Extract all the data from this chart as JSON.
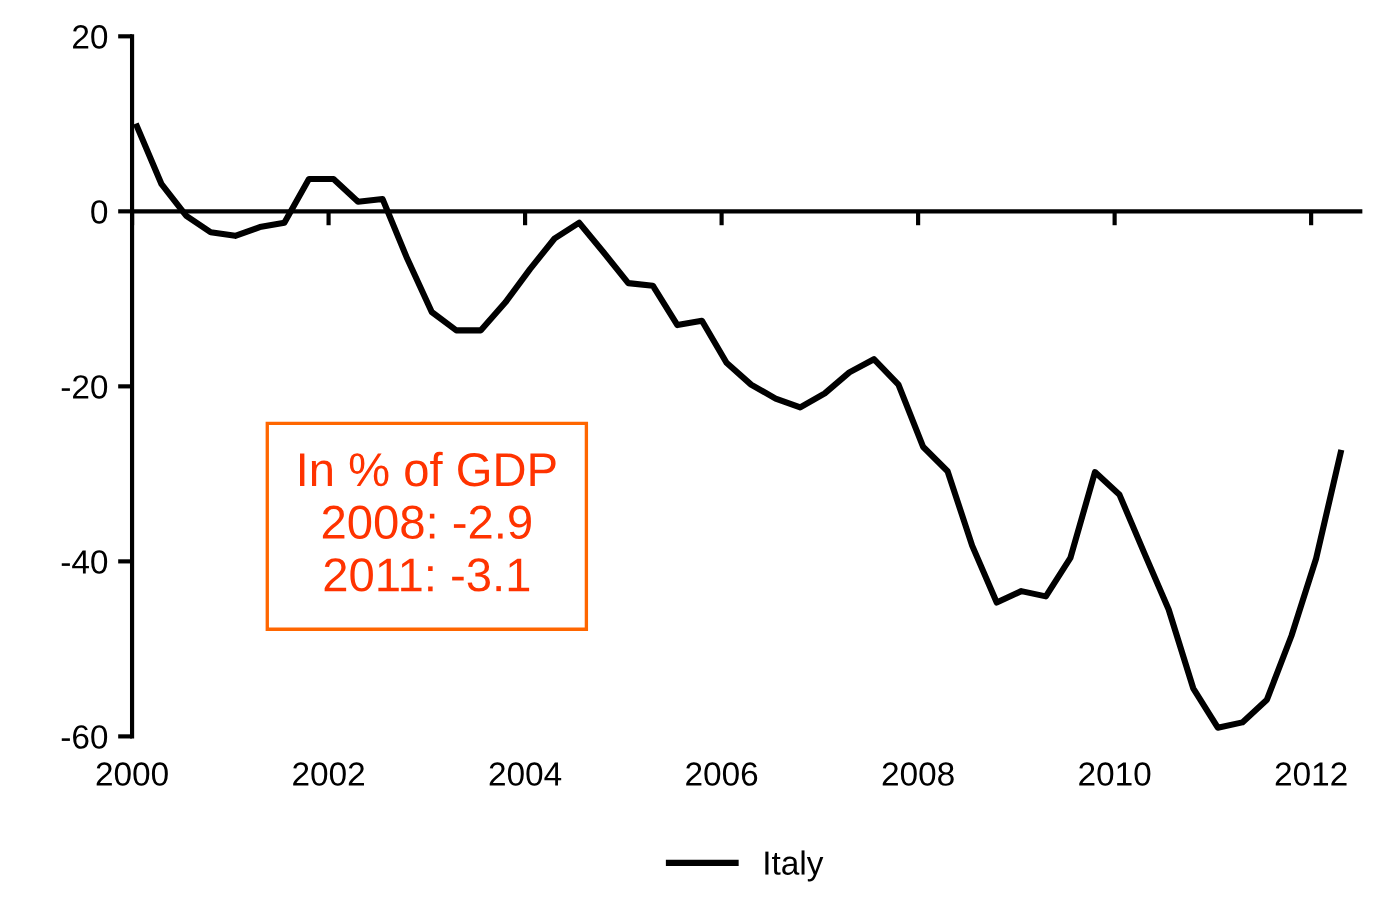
{
  "chart_data": {
    "type": "line",
    "x": [
      2000.05,
      2000.3,
      2000.55,
      2000.8,
      2001.05,
      2001.3,
      2001.55,
      2001.8,
      2002.05,
      2002.3,
      2002.55,
      2002.8,
      2003.05,
      2003.3,
      2003.55,
      2003.8,
      2004.05,
      2004.3,
      2004.55,
      2004.8,
      2005.05,
      2005.3,
      2005.55,
      2005.8,
      2006.05,
      2006.3,
      2006.55,
      2006.8,
      2007.05,
      2007.3,
      2007.55,
      2007.8,
      2008.05,
      2008.3,
      2008.55,
      2008.8,
      2009.05,
      2009.3,
      2009.55,
      2009.8,
      2010.05,
      2010.3,
      2010.55,
      2010.8,
      2011.05,
      2011.3,
      2011.55,
      2011.8,
      2012.05,
      2012.3
    ],
    "series": [
      {
        "name": "Italy",
        "color": "#000000",
        "values": [
          9.7,
          3.1,
          -0.5,
          -2.4,
          -2.8,
          -1.8,
          -1.3,
          3.7,
          3.7,
          1.1,
          1.4,
          -5.4,
          -11.5,
          -13.6,
          -13.6,
          -10.4,
          -6.6,
          -3.1,
          -1.3,
          -4.7,
          -8.2,
          -8.5,
          -13.0,
          -12.5,
          -17.3,
          -19.8,
          -21.4,
          -22.4,
          -20.8,
          -18.4,
          -16.9,
          -19.8,
          -26.9,
          -29.7,
          -38.2,
          -44.7,
          -43.4,
          -44.0,
          -39.6,
          -29.8,
          -32.4,
          -39.0,
          -45.5,
          -54.5,
          -59.0,
          -58.4,
          -55.8,
          -48.5,
          -39.7,
          -27.6
        ]
      }
    ],
    "xlim": [
      2000,
      2012.5
    ],
    "xticks": [
      2000,
      2002,
      2004,
      2006,
      2008,
      2010,
      2012
    ],
    "ylim": [
      -60,
      20
    ],
    "yticks": [
      -60,
      -40,
      -20,
      0,
      20
    ],
    "annotations": [
      "In % of GDP\n2008: -2.9\n2011: -3.1"
    ],
    "legend": "bottom",
    "marker": "none",
    "line_style": "solid"
  }
}
